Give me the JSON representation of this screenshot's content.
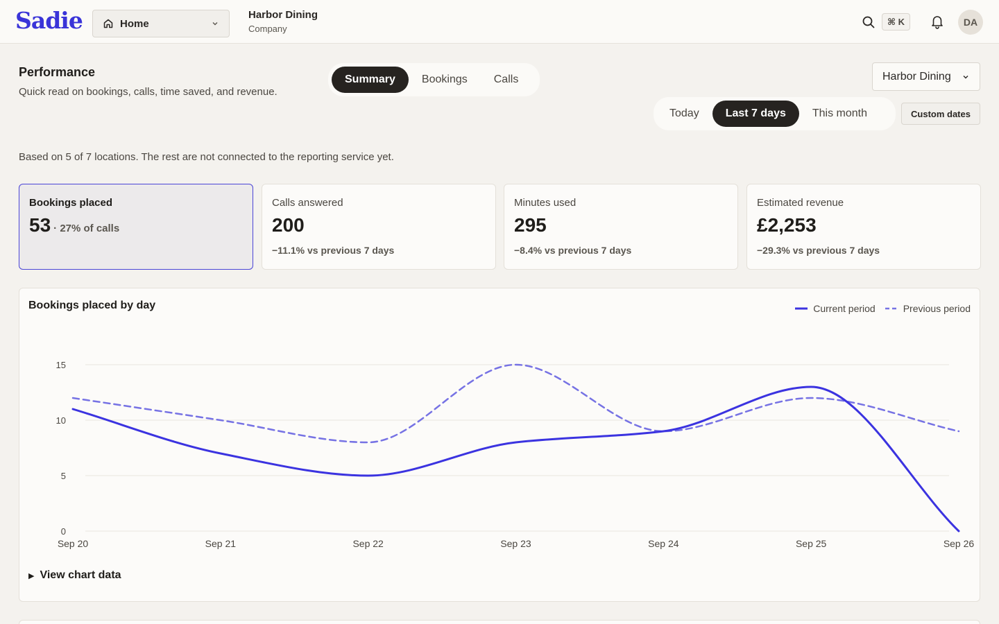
{
  "app": {
    "logo": "Sadie"
  },
  "nav": {
    "label": "Home",
    "icon": "home-icon"
  },
  "org": {
    "name": "Harbor Dining",
    "role": "Company"
  },
  "topbar": {
    "shortcut": "⌘ K",
    "avatar_initials": "DA"
  },
  "header": {
    "title": "Performance",
    "subtitle": "Quick read on bookings, calls, time saved, and revenue.",
    "tabs": [
      {
        "label": "Summary",
        "active": true
      },
      {
        "label": "Bookings",
        "active": false
      },
      {
        "label": "Calls",
        "active": false
      }
    ],
    "location_select": "Harbor Dining",
    "ranges": [
      {
        "label": "Today",
        "active": false
      },
      {
        "label": "Last 7 days",
        "active": true
      },
      {
        "label": "This month",
        "active": false
      }
    ],
    "custom_dates_label": "Custom dates",
    "note": "Based on 5 of 7 locations. The rest are not connected to the reporting service yet."
  },
  "cards": [
    {
      "label": "Bookings placed",
      "value": "53",
      "inline": "· 27% of calls",
      "delta": "",
      "selected": true
    },
    {
      "label": "Calls answered",
      "value": "200",
      "inline": "",
      "delta": "−11.1% vs previous 7 days",
      "selected": false
    },
    {
      "label": "Minutes used",
      "value": "295",
      "inline": "",
      "delta": "−8.4% vs previous 7 days",
      "selected": false
    },
    {
      "label": "Estimated revenue",
      "value": "£2,253",
      "inline": "",
      "delta": "−29.3% vs previous 7 days",
      "selected": false
    }
  ],
  "chart": {
    "view_data_label": "View chart data"
  },
  "colors": {
    "accent": "#3a34d8",
    "current_series": "#3b33e0",
    "previous_series": "#7672e4",
    "grid": "#e7e4de"
  },
  "chart_data": {
    "type": "line",
    "title": "Bookings placed by day",
    "categories": [
      "Sep 20",
      "Sep 21",
      "Sep 22",
      "Sep 23",
      "Sep 24",
      "Sep 25",
      "Sep 26"
    ],
    "series": [
      {
        "name": "Current period",
        "values": [
          11,
          7,
          5,
          8,
          9,
          13,
          0
        ],
        "style": "solid"
      },
      {
        "name": "Previous period",
        "values": [
          12,
          10,
          8,
          15,
          9,
          12,
          9
        ],
        "style": "dashed"
      }
    ],
    "yticks": [
      0,
      5,
      10,
      15
    ],
    "ylim": [
      0,
      15
    ],
    "xlabel": "",
    "ylabel": "",
    "grid": true,
    "legend": "top-right"
  }
}
